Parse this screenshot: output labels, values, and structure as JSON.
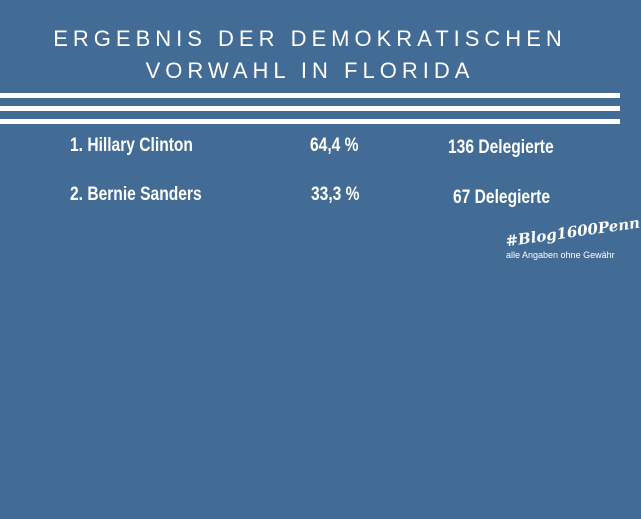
{
  "header": {
    "title_lines": [
      "ERGEBNIS DER DEMOKRATISCHEN",
      "VORWAHL IN FLORIDA"
    ]
  },
  "table": {
    "rows": [
      [
        "1.  Hillary Clinton",
        "64,4 %",
        "136 Delegierte"
      ],
      [
        "2.  Bernie Sanders",
        "33,3 %",
        "67 Delegierte"
      ]
    ]
  },
  "footer": {
    "hashtag": "#Blog1600Penn",
    "note": "alle Angaben ohne Gewähr"
  }
}
